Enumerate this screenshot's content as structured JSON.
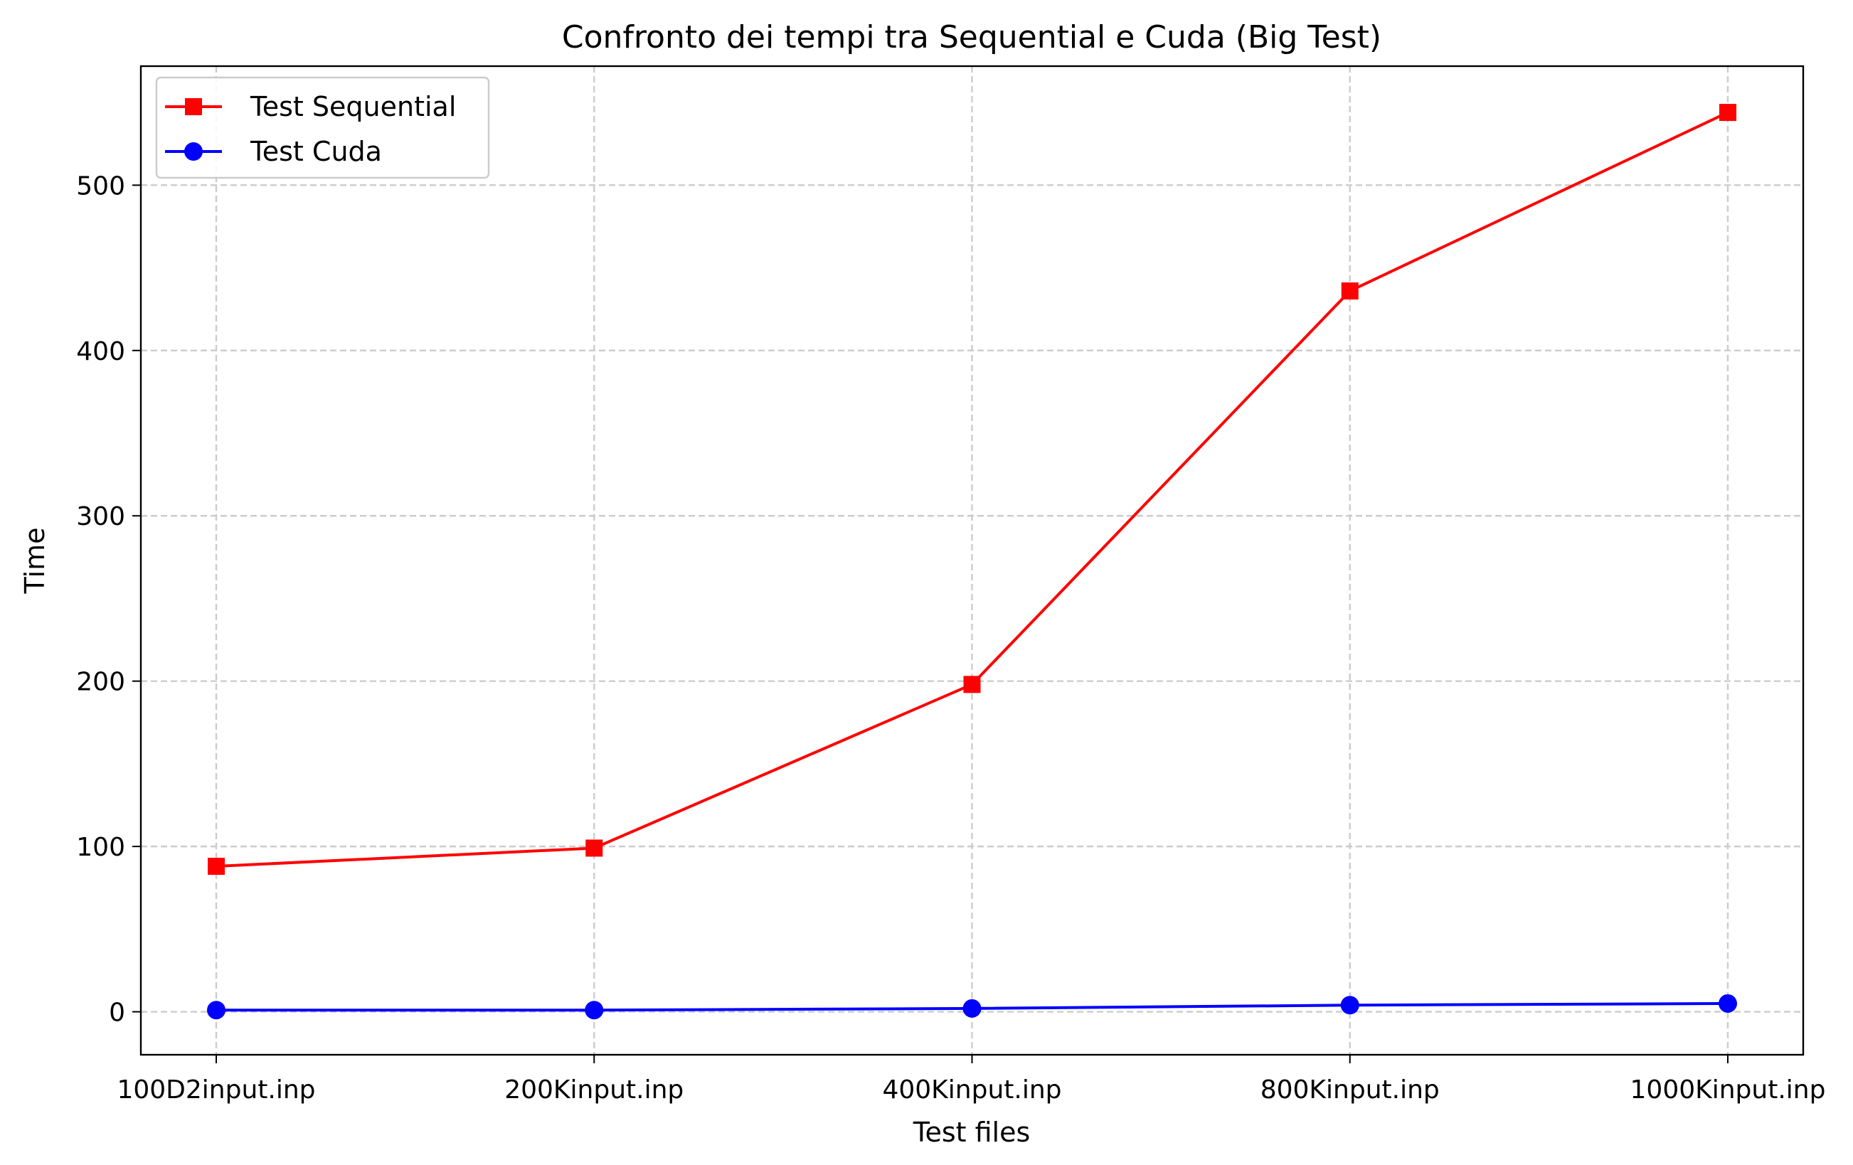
{
  "chart_data": {
    "type": "line",
    "title": "Confronto dei tempi tra Sequential e Cuda (Big Test)",
    "xlabel": "Test files",
    "ylabel": "Time",
    "categories": [
      "100D2input.inp",
      "200Kinput.inp",
      "400Kinput.inp",
      "800Kinput.inp",
      "1000Kinput.inp"
    ],
    "ylim": [
      -26,
      572
    ],
    "yticks": [
      "0",
      "100",
      "200",
      "300",
      "400",
      "500"
    ],
    "grid": true,
    "legend_position": "top-left",
    "series": [
      {
        "name": "Test Sequential",
        "color": "#ff0000",
        "marker": "square",
        "values": [
          88,
          99,
          198,
          436,
          544
        ]
      },
      {
        "name": "Test Cuda",
        "color": "#0000ff",
        "marker": "circle",
        "values": [
          1,
          1,
          2,
          4,
          5
        ]
      }
    ]
  }
}
